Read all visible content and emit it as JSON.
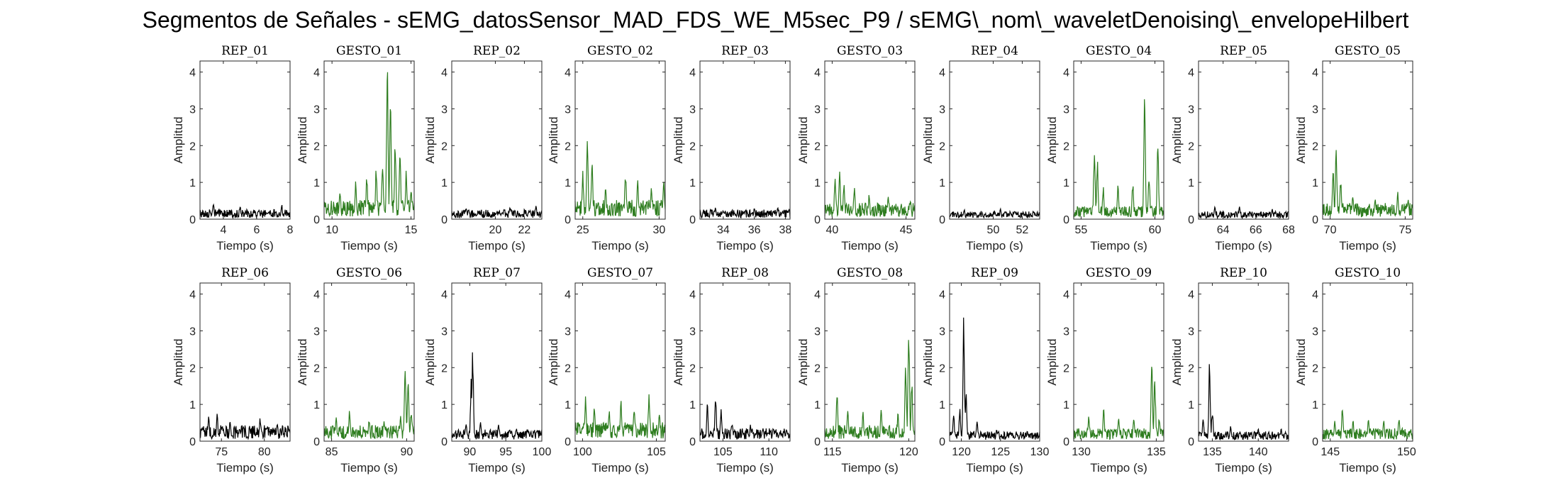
{
  "title": "Segmentos de Señales - sEMG_datosSensor_MAD_FDS_WE_M5sec_P9 / sEMG\\_nom\\_waveletDenoising\\_envelopeHilbert",
  "colors": {
    "rep": "#000000",
    "gesto": "#2e7d1f"
  },
  "chart_data": [
    {
      "type": "line",
      "title": "REP_01",
      "xlabel": "Tiempo (s)",
      "ylabel": "Amplitud",
      "xlim": [
        2.6,
        8.0
      ],
      "ylim": [
        0,
        4.3
      ],
      "xticks": [
        4,
        6,
        8
      ],
      "yticks": [
        0,
        1,
        2,
        3,
        4
      ],
      "kind": "rep",
      "baseline": 0.15,
      "peaks": [
        [
          3.4,
          0.4
        ],
        [
          5.0,
          0.35
        ],
        [
          7.5,
          0.35
        ]
      ]
    },
    {
      "type": "line",
      "title": "GESTO_01",
      "xlabel": "Tiempo (s)",
      "ylabel": "Amplitud",
      "xlim": [
        9.5,
        15.2
      ],
      "ylim": [
        0,
        4.3
      ],
      "xticks": [
        10,
        15
      ],
      "yticks": [
        0,
        1,
        2,
        3,
        4
      ],
      "kind": "gesto",
      "baseline": 0.3,
      "peaks": [
        [
          10.5,
          0.7
        ],
        [
          11.5,
          0.9
        ],
        [
          12.2,
          1.1
        ],
        [
          12.8,
          1.3
        ],
        [
          13.2,
          1.4
        ],
        [
          13.5,
          4.2
        ],
        [
          13.7,
          3.2
        ],
        [
          14.0,
          2.0
        ],
        [
          14.3,
          1.8
        ],
        [
          14.7,
          1.2
        ],
        [
          15.0,
          0.8
        ]
      ]
    },
    {
      "type": "line",
      "title": "REP_02",
      "xlabel": "Tiempo (s)",
      "ylabel": "Amplitud",
      "xlim": [
        17.0,
        23.2
      ],
      "ylim": [
        0,
        4.3
      ],
      "xticks": [
        20,
        22
      ],
      "yticks": [
        0,
        1,
        2,
        3,
        4
      ],
      "kind": "rep",
      "baseline": 0.15,
      "peaks": [
        [
          18.0,
          0.3
        ],
        [
          21.0,
          0.3
        ],
        [
          22.8,
          0.35
        ]
      ]
    },
    {
      "type": "line",
      "title": "GESTO_02",
      "xlabel": "Tiempo (s)",
      "ylabel": "Amplitud",
      "xlim": [
        24.5,
        30.4
      ],
      "ylim": [
        0,
        4.3
      ],
      "xticks": [
        25,
        30
      ],
      "yticks": [
        0,
        1,
        2,
        3,
        4
      ],
      "kind": "gesto",
      "baseline": 0.3,
      "peaks": [
        [
          25.0,
          1.2
        ],
        [
          25.3,
          2.1
        ],
        [
          25.6,
          1.5
        ],
        [
          26.5,
          0.8
        ],
        [
          27.8,
          1.2
        ],
        [
          28.6,
          1.0
        ],
        [
          29.5,
          0.8
        ],
        [
          30.3,
          1.1
        ]
      ]
    },
    {
      "type": "line",
      "title": "REP_03",
      "xlabel": "Tiempo (s)",
      "ylabel": "Amplitud",
      "xlim": [
        32.5,
        38.3
      ],
      "ylim": [
        0,
        4.3
      ],
      "xticks": [
        34,
        36,
        38
      ],
      "yticks": [
        0,
        1,
        2,
        3,
        4
      ],
      "kind": "rep",
      "baseline": 0.15,
      "peaks": [
        [
          33.5,
          0.3
        ],
        [
          36.0,
          0.3
        ],
        [
          37.5,
          0.3
        ]
      ]
    },
    {
      "type": "line",
      "title": "GESTO_03",
      "xlabel": "Tiempo (s)",
      "ylabel": "Amplitud",
      "xlim": [
        39.5,
        45.6
      ],
      "ylim": [
        0,
        4.3
      ],
      "xticks": [
        40,
        45
      ],
      "yticks": [
        0,
        1,
        2,
        3,
        4
      ],
      "kind": "gesto",
      "baseline": 0.25,
      "peaks": [
        [
          40.2,
          1.1
        ],
        [
          40.5,
          1.3
        ],
        [
          40.8,
          1.0
        ],
        [
          41.5,
          0.8
        ],
        [
          42.5,
          0.6
        ],
        [
          43.8,
          0.6
        ],
        [
          45.3,
          0.5
        ]
      ]
    },
    {
      "type": "line",
      "title": "REP_04",
      "xlabel": "Tiempo (s)",
      "ylabel": "Amplitud",
      "xlim": [
        47.0,
        53.2
      ],
      "ylim": [
        0,
        4.3
      ],
      "xticks": [
        50,
        52
      ],
      "yticks": [
        0,
        1,
        2,
        3,
        4
      ],
      "kind": "rep",
      "baseline": 0.12,
      "peaks": [
        [
          48.0,
          0.25
        ],
        [
          50.5,
          0.25
        ],
        [
          52.8,
          0.2
        ]
      ]
    },
    {
      "type": "line",
      "title": "GESTO_04",
      "xlabel": "Tiempo (s)",
      "ylabel": "Amplitud",
      "xlim": [
        54.5,
        60.6
      ],
      "ylim": [
        0,
        4.3
      ],
      "xticks": [
        55,
        60
      ],
      "yticks": [
        0,
        1,
        2,
        3,
        4
      ],
      "kind": "gesto",
      "baseline": 0.2,
      "peaks": [
        [
          55.9,
          1.7
        ],
        [
          56.1,
          1.5
        ],
        [
          56.5,
          0.8
        ],
        [
          57.5,
          0.9
        ],
        [
          58.5,
          0.9
        ],
        [
          59.3,
          3.0
        ],
        [
          59.6,
          1.2
        ],
        [
          60.2,
          1.8
        ]
      ]
    },
    {
      "type": "line",
      "title": "REP_05",
      "xlabel": "Tiempo (s)",
      "ylabel": "Amplitud",
      "xlim": [
        62.5,
        68.0
      ],
      "ylim": [
        0,
        4.3
      ],
      "xticks": [
        64,
        66,
        68
      ],
      "yticks": [
        0,
        1,
        2,
        3,
        4
      ],
      "kind": "rep",
      "baseline": 0.12,
      "peaks": [
        [
          63.5,
          0.35
        ],
        [
          65.0,
          0.3
        ],
        [
          67.0,
          0.25
        ]
      ]
    },
    {
      "type": "line",
      "title": "GESTO_05",
      "xlabel": "Tiempo (s)",
      "ylabel": "Amplitud",
      "xlim": [
        69.5,
        75.5
      ],
      "ylim": [
        0,
        4.3
      ],
      "xticks": [
        70,
        75
      ],
      "yticks": [
        0,
        1,
        2,
        3,
        4
      ],
      "kind": "gesto",
      "baseline": 0.25,
      "peaks": [
        [
          70.2,
          1.2
        ],
        [
          70.4,
          1.9
        ],
        [
          70.7,
          1.0
        ],
        [
          71.5,
          0.6
        ],
        [
          73.0,
          0.6
        ],
        [
          74.5,
          0.7
        ],
        [
          75.2,
          0.5
        ]
      ]
    },
    {
      "type": "line",
      "title": "REP_06",
      "xlabel": "Tiempo (s)",
      "ylabel": "Amplitud",
      "xlim": [
        72.5,
        83.0
      ],
      "ylim": [
        0,
        4.3
      ],
      "xticks": [
        75,
        80
      ],
      "yticks": [
        0,
        1,
        2,
        3,
        4
      ],
      "kind": "rep",
      "baseline": 0.25,
      "peaks": [
        [
          73.5,
          0.6
        ],
        [
          74.5,
          0.7
        ],
        [
          76.0,
          0.5
        ],
        [
          79.5,
          0.6
        ],
        [
          81.5,
          0.5
        ]
      ]
    },
    {
      "type": "line",
      "title": "GESTO_06",
      "xlabel": "Tiempo (s)",
      "ylabel": "Amplitud",
      "xlim": [
        84.5,
        90.5
      ],
      "ylim": [
        0,
        4.3
      ],
      "xticks": [
        85,
        90
      ],
      "yticks": [
        0,
        1,
        2,
        3,
        4
      ],
      "kind": "gesto",
      "baseline": 0.25,
      "peaks": [
        [
          85.3,
          0.6
        ],
        [
          86.2,
          0.8
        ],
        [
          87.5,
          0.6
        ],
        [
          88.5,
          0.5
        ],
        [
          89.6,
          0.6
        ],
        [
          89.9,
          2.1
        ],
        [
          90.1,
          1.7
        ],
        [
          90.3,
          0.8
        ]
      ]
    },
    {
      "type": "line",
      "title": "REP_07",
      "xlabel": "Tiempo (s)",
      "ylabel": "Amplitud",
      "xlim": [
        87.5,
        100.0
      ],
      "ylim": [
        0,
        4.3
      ],
      "xticks": [
        90,
        95,
        100
      ],
      "yticks": [
        0,
        1,
        2,
        3,
        4
      ],
      "kind": "rep",
      "baseline": 0.18,
      "peaks": [
        [
          89.5,
          0.5
        ],
        [
          90.2,
          1.5
        ],
        [
          90.4,
          2.2
        ],
        [
          91.5,
          0.5
        ],
        [
          94.0,
          0.4
        ],
        [
          96.5,
          0.3
        ]
      ]
    },
    {
      "type": "line",
      "title": "GESTO_07",
      "xlabel": "Tiempo (s)",
      "ylabel": "Amplitud",
      "xlim": [
        99.5,
        105.6
      ],
      "ylim": [
        0,
        4.3
      ],
      "xticks": [
        100,
        105
      ],
      "yticks": [
        0,
        1,
        2,
        3,
        4
      ],
      "kind": "gesto",
      "baseline": 0.3,
      "peaks": [
        [
          100.2,
          1.1
        ],
        [
          100.8,
          0.9
        ],
        [
          101.8,
          0.8
        ],
        [
          102.6,
          1.0
        ],
        [
          103.5,
          0.8
        ],
        [
          104.5,
          1.2
        ],
        [
          105.2,
          0.7
        ]
      ]
    },
    {
      "type": "line",
      "title": "REP_08",
      "xlabel": "Tiempo (s)",
      "ylabel": "Amplitud",
      "xlim": [
        102.5,
        112.3
      ],
      "ylim": [
        0,
        4.3
      ],
      "xticks": [
        105,
        110
      ],
      "yticks": [
        0,
        1,
        2,
        3,
        4
      ],
      "kind": "rep",
      "baseline": 0.2,
      "peaks": [
        [
          103.3,
          0.9
        ],
        [
          104.2,
          1.1
        ],
        [
          104.8,
          0.8
        ],
        [
          106.0,
          0.5
        ],
        [
          108.0,
          0.4
        ],
        [
          110.5,
          0.3
        ]
      ]
    },
    {
      "type": "line",
      "title": "GESTO_08",
      "xlabel": "Tiempo (s)",
      "ylabel": "Amplitud",
      "xlim": [
        114.5,
        120.4
      ],
      "ylim": [
        0,
        4.3
      ],
      "xticks": [
        115,
        120
      ],
      "yticks": [
        0,
        1,
        2,
        3,
        4
      ],
      "kind": "gesto",
      "baseline": 0.25,
      "peaks": [
        [
          115.3,
          1.2
        ],
        [
          116.0,
          0.8
        ],
        [
          117.0,
          0.7
        ],
        [
          118.2,
          0.8
        ],
        [
          119.3,
          0.7
        ],
        [
          119.8,
          2.0
        ],
        [
          120.0,
          3.0
        ],
        [
          120.2,
          1.5
        ]
      ]
    },
    {
      "type": "line",
      "title": "REP_09",
      "xlabel": "Tiempo (s)",
      "ylabel": "Amplitud",
      "xlim": [
        118.5,
        130.0
      ],
      "ylim": [
        0,
        4.3
      ],
      "xticks": [
        120,
        125,
        130
      ],
      "yticks": [
        0,
        1,
        2,
        3,
        4
      ],
      "kind": "rep",
      "baseline": 0.15,
      "peaks": [
        [
          119.0,
          0.7
        ],
        [
          119.8,
          0.8
        ],
        [
          120.3,
          3.0
        ],
        [
          120.6,
          1.2
        ],
        [
          122.0,
          0.5
        ],
        [
          124.5,
          0.3
        ],
        [
          127.0,
          0.2
        ]
      ]
    },
    {
      "type": "line",
      "title": "GESTO_09",
      "xlabel": "Tiempo (s)",
      "ylabel": "Amplitud",
      "xlim": [
        129.5,
        135.5
      ],
      "ylim": [
        0,
        4.3
      ],
      "xticks": [
        130,
        135
      ],
      "yticks": [
        0,
        1,
        2,
        3,
        4
      ],
      "kind": "gesto",
      "baseline": 0.2,
      "peaks": [
        [
          130.5,
          0.6
        ],
        [
          131.5,
          0.8
        ],
        [
          132.5,
          0.6
        ],
        [
          133.5,
          0.6
        ],
        [
          134.7,
          1.9
        ],
        [
          134.9,
          1.6
        ],
        [
          135.2,
          0.6
        ]
      ]
    },
    {
      "type": "line",
      "title": "REP_10",
      "xlabel": "Tiempo (s)",
      "ylabel": "Amplitud",
      "xlim": [
        133.5,
        143.3
      ],
      "ylim": [
        0,
        4.3
      ],
      "xticks": [
        135,
        140
      ],
      "yticks": [
        0,
        1,
        2,
        3,
        4
      ],
      "kind": "rep",
      "baseline": 0.15,
      "peaks": [
        [
          134.0,
          0.6
        ],
        [
          134.7,
          1.9
        ],
        [
          135.0,
          0.8
        ],
        [
          137.0,
          0.4
        ],
        [
          140.0,
          0.3
        ],
        [
          142.5,
          0.3
        ]
      ]
    },
    {
      "type": "line",
      "title": "GESTO_10",
      "xlabel": "Tiempo (s)",
      "ylabel": "Amplitud",
      "xlim": [
        144.5,
        150.4
      ],
      "ylim": [
        0,
        4.3
      ],
      "xticks": [
        145,
        150
      ],
      "yticks": [
        0,
        1,
        2,
        3,
        4
      ],
      "kind": "gesto",
      "baseline": 0.2,
      "peaks": [
        [
          145.3,
          0.5
        ],
        [
          145.8,
          0.9
        ],
        [
          146.5,
          0.5
        ],
        [
          147.5,
          0.6
        ],
        [
          148.5,
          0.5
        ],
        [
          149.5,
          0.6
        ]
      ]
    }
  ]
}
